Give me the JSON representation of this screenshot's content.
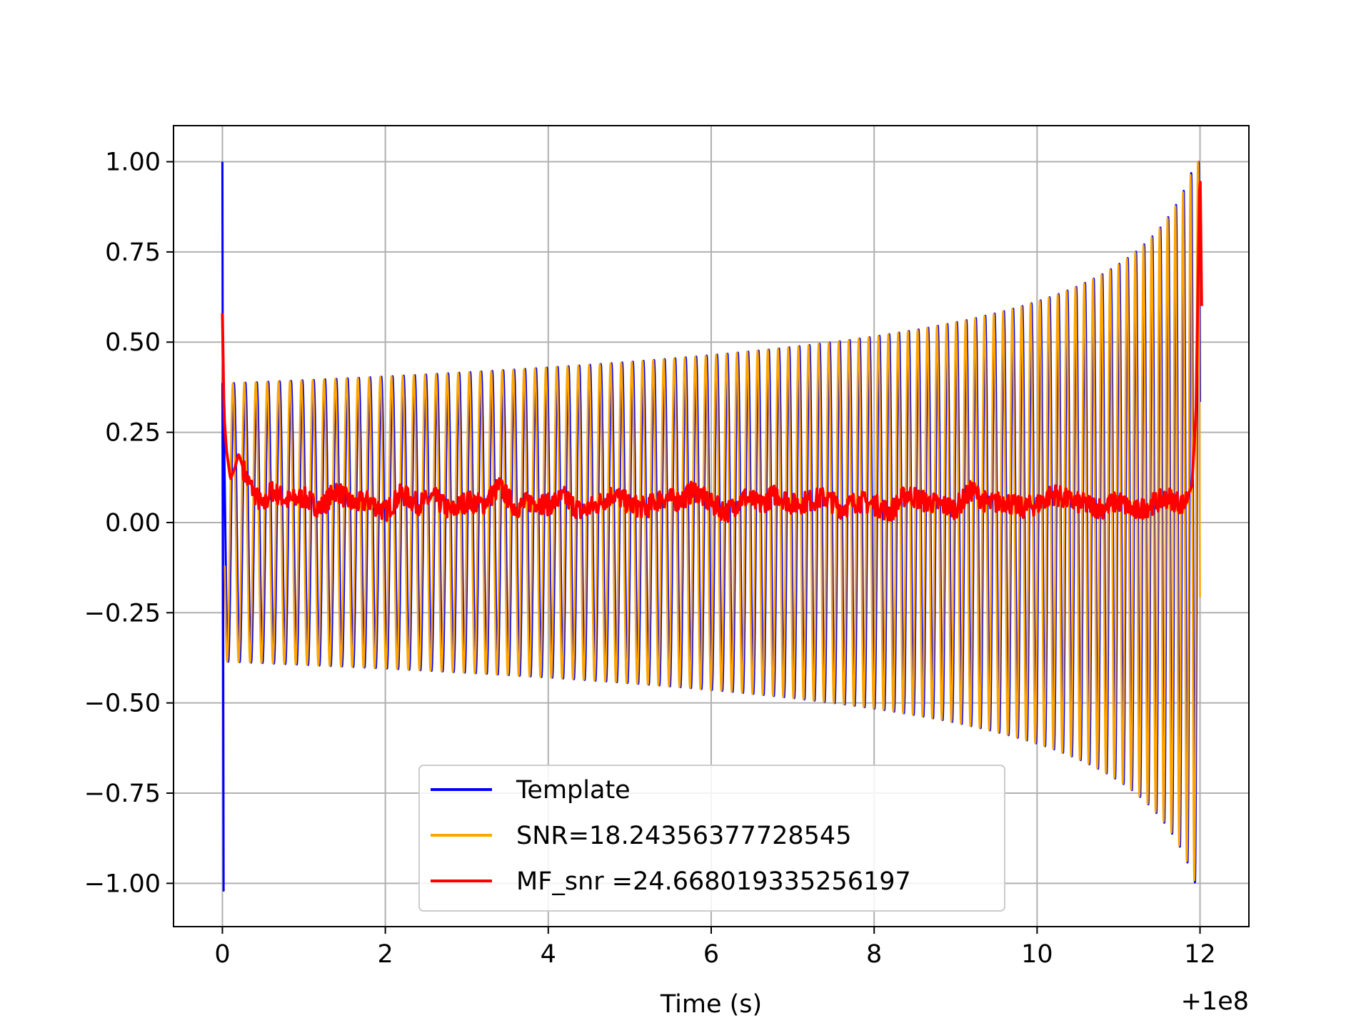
{
  "chart_data": {
    "type": "line",
    "title": "",
    "xlabel": "Time (s)",
    "ylabel": "",
    "x_offset_label": "+1e8",
    "xlim": [
      -0.6,
      12.6
    ],
    "ylim": [
      -1.12,
      1.1
    ],
    "x_ticks": [
      0,
      2,
      4,
      6,
      8,
      10,
      12
    ],
    "x_tick_labels": [
      "0",
      "2",
      "4",
      "6",
      "8",
      "10",
      "12"
    ],
    "y_ticks": [
      1.0,
      0.75,
      0.5,
      0.25,
      0.0,
      -0.25,
      -0.5,
      -0.75,
      -1.0
    ],
    "y_tick_labels": [
      "1.00",
      "0.75",
      "0.50",
      "0.25",
      "0.00",
      "−0.25",
      "−0.50",
      "−0.75",
      "−1.00"
    ],
    "grid": true,
    "legend_position": "bottom-center",
    "series": [
      {
        "name": "Template",
        "color": "#0000ff",
        "envelope": {
          "start_amplitude": 0.385,
          "end_amplitude": 1.0,
          "x_start": 0.0,
          "x_end": 12.0
        },
        "initial_spike": {
          "x": 0.0,
          "max": 1.0,
          "min": -1.02
        }
      },
      {
        "name": "SNR=18.24356377728545",
        "color": "#ffa500",
        "envelope": {
          "start_amplitude": 0.385,
          "end_amplitude": 1.0,
          "x_start": 0.0,
          "x_end": 12.0
        }
      },
      {
        "name": "MF_snr =24.668019335256197",
        "color": "#ff0000",
        "x": [
          0.0,
          0.02,
          0.05,
          0.1,
          0.15,
          0.2,
          0.3,
          0.4,
          0.5,
          0.6,
          0.8,
          1.0,
          1.2,
          1.4,
          1.6,
          1.8,
          2.0,
          2.2,
          2.4,
          2.6,
          2.8,
          3.0,
          3.2,
          3.4,
          3.6,
          3.8,
          4.0,
          4.2,
          4.4,
          4.6,
          4.8,
          5.0,
          5.2,
          5.4,
          5.6,
          5.8,
          6.0,
          6.2,
          6.4,
          6.6,
          6.8,
          7.0,
          7.2,
          7.4,
          7.6,
          7.8,
          8.0,
          8.2,
          8.4,
          8.6,
          8.8,
          9.0,
          9.2,
          9.4,
          9.6,
          9.8,
          10.0,
          10.2,
          10.4,
          10.6,
          10.8,
          11.0,
          11.2,
          11.4,
          11.6,
          11.8,
          11.9,
          11.95,
          12.0,
          12.02
        ],
        "y": [
          0.58,
          0.3,
          0.2,
          0.12,
          0.15,
          0.19,
          0.12,
          0.08,
          0.04,
          0.09,
          0.06,
          0.07,
          0.04,
          0.09,
          0.05,
          0.06,
          0.03,
          0.08,
          0.05,
          0.07,
          0.03,
          0.06,
          0.05,
          0.1,
          0.04,
          0.06,
          0.05,
          0.07,
          0.03,
          0.05,
          0.08,
          0.05,
          0.04,
          0.07,
          0.06,
          0.09,
          0.05,
          0.03,
          0.07,
          0.05,
          0.08,
          0.05,
          0.06,
          0.07,
          0.04,
          0.06,
          0.05,
          0.03,
          0.08,
          0.06,
          0.05,
          0.04,
          0.09,
          0.05,
          0.06,
          0.04,
          0.05,
          0.08,
          0.06,
          0.05,
          0.04,
          0.06,
          0.03,
          0.05,
          0.07,
          0.05,
          0.1,
          0.3,
          1.0,
          0.6
        ]
      }
    ]
  }
}
